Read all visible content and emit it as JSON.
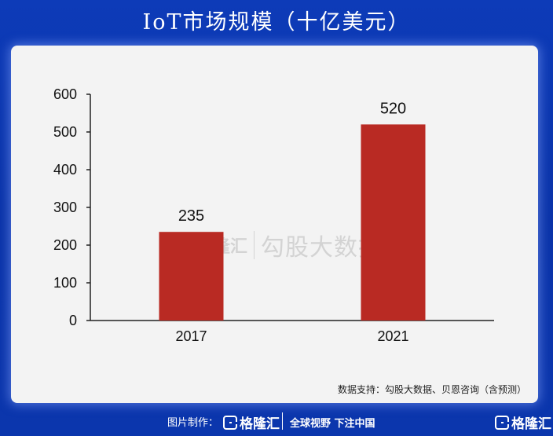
{
  "header": {
    "title": "IoT市场规模（十亿美元）"
  },
  "chart_data": {
    "type": "bar",
    "title": "IoT市场规模（十亿美元）",
    "categories": [
      "2017",
      "2021"
    ],
    "values": [
      235,
      520
    ],
    "data_labels": [
      "235",
      "520"
    ],
    "yticks": [
      "0",
      "100",
      "200",
      "300",
      "400",
      "500",
      "600"
    ],
    "ylim": [
      0,
      600
    ],
    "xlabel": "",
    "ylabel": "",
    "grid": false,
    "bar_color": "#b92a23"
  },
  "watermark": {
    "brand": "格隆汇",
    "text": "勾股大数据"
  },
  "source": "数据支持：勾股大数据、贝恩咨询（含预测）",
  "footer": {
    "made_label": "图片制作：",
    "brand": "格隆汇",
    "slogan": "全球视野 下注中国",
    "right_brand": "格隆汇"
  },
  "colors": {
    "background": "#0b36ad",
    "panel": "#f3f3f3",
    "bar": "#b92a23",
    "text": "#111111"
  }
}
